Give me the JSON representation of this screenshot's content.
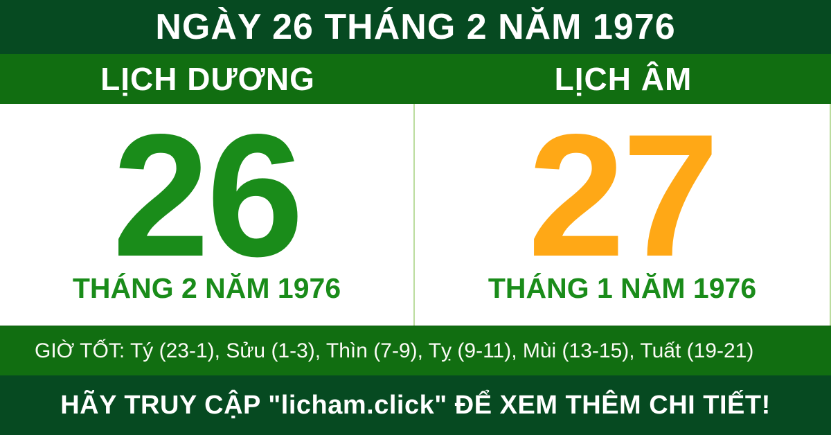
{
  "header": {
    "title": "NGÀY 26 THÁNG 2 NĂM 1976"
  },
  "columns": {
    "solar": {
      "label": "LỊCH DƯƠNG",
      "day": "26",
      "month_year": "THÁNG 2 NĂM 1976"
    },
    "lunar": {
      "label": "LỊCH ÂM",
      "day": "27",
      "month_year": "THÁNG 1 NĂM 1976"
    }
  },
  "good_hours": {
    "text": "GIỜ TỐT: Tý (23-1), Sửu (1-3), Thìn (7-9), Tỵ (9-11), Mùi (13-15), Tuất (19-21)"
  },
  "footer": {
    "text": "HÃY TRUY CẬP \"licham.click\" ĐỂ XEM THÊM CHI TIẾT!"
  },
  "colors": {
    "dark_green": "#064a21",
    "band_green": "#116e11",
    "solar_day_green": "#1a8c1a",
    "lunar_day_orange": "#ffa816",
    "month_label_green": "#1a8c1a",
    "divider_light_green": "#bbdc9e",
    "text_white": "#ffffff"
  }
}
